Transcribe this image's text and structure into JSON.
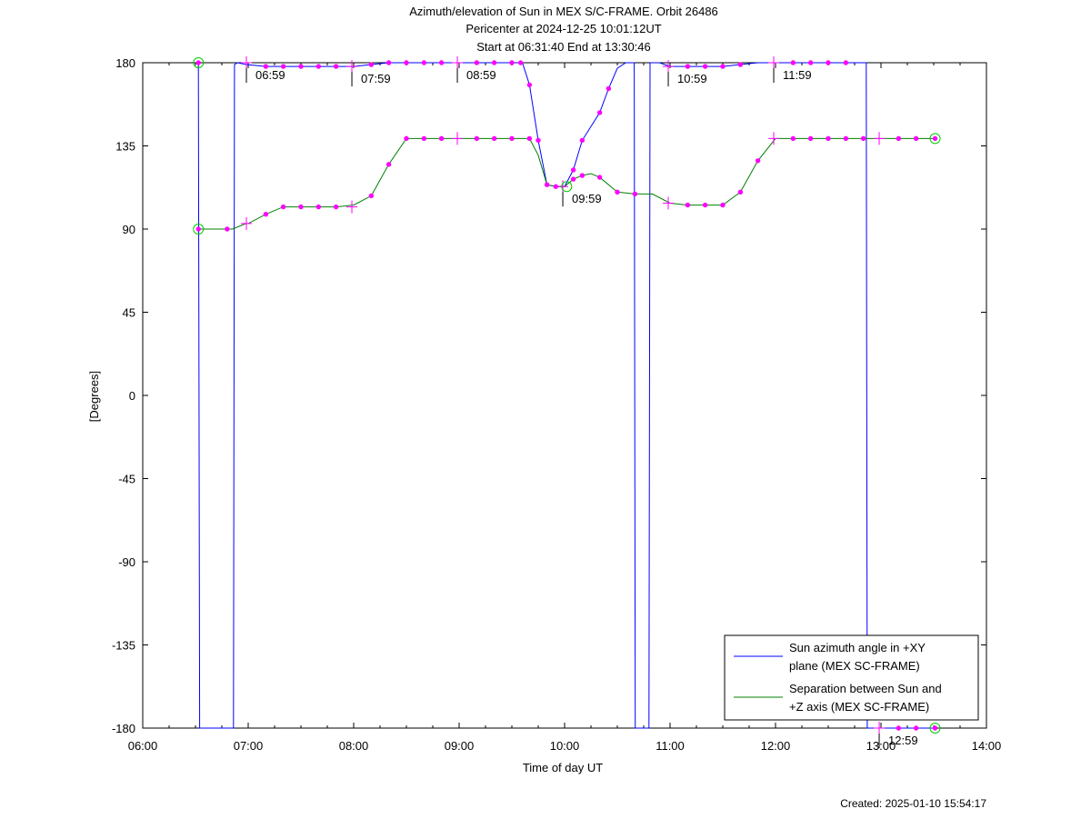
{
  "titles": {
    "line1": "Azimuth/elevation of Sun in MEX S/C-FRAME.  Orbit 26486",
    "line2": "Pericenter at 2024-12-25 10:01:12UT",
    "line3": "Start at 06:31:40 End at 13:30:46"
  },
  "created": "Created: 2025-01-10 15:54:17",
  "chart_data": {
    "type": "line",
    "xlabel": "Time of day UT",
    "ylabel": "[Degrees]",
    "xlim": [
      6.0,
      14.0
    ],
    "ylim": [
      -180,
      180
    ],
    "xticks": [
      {
        "v": 6,
        "label": "06:00"
      },
      {
        "v": 7,
        "label": "07:00"
      },
      {
        "v": 8,
        "label": "08:00"
      },
      {
        "v": 9,
        "label": "09:00"
      },
      {
        "v": 10,
        "label": "10:00"
      },
      {
        "v": 11,
        "label": "11:00"
      },
      {
        "v": 12,
        "label": "12:00"
      },
      {
        "v": 13,
        "label": "13:00"
      },
      {
        "v": 14,
        "label": "14:00"
      }
    ],
    "yticks": [
      180,
      135,
      90,
      45,
      0,
      -45,
      -90,
      -135,
      -180
    ],
    "legend_position": "bottom-right",
    "series": [
      {
        "name": "Sun azimuth angle in +XY plane (MEX SC-FRAME)",
        "legend_lines": [
          "Sun azimuth angle in +XY",
          "plane (MEX SC-FRAME)"
        ],
        "color": "#0000ff",
        "points": [
          [
            6.528,
            180
          ],
          [
            6.54,
            -180
          ],
          [
            6.86,
            -180
          ],
          [
            6.87,
            179
          ],
          [
            6.9,
            180
          ],
          [
            6.98,
            179
          ],
          [
            7.167,
            178
          ],
          [
            7.333,
            178
          ],
          [
            7.5,
            178
          ],
          [
            7.667,
            178
          ],
          [
            7.833,
            178
          ],
          [
            8.0,
            178
          ],
          [
            8.167,
            179
          ],
          [
            8.333,
            180
          ],
          [
            8.5,
            180
          ],
          [
            8.667,
            180
          ],
          [
            8.833,
            180
          ],
          [
            9.0,
            180
          ],
          [
            9.167,
            180
          ],
          [
            9.333,
            180
          ],
          [
            9.5,
            180
          ],
          [
            9.6,
            180
          ],
          [
            9.667,
            168
          ],
          [
            9.75,
            138
          ],
          [
            9.833,
            114
          ],
          [
            9.917,
            113
          ],
          [
            10.0,
            113
          ],
          [
            10.083,
            122
          ],
          [
            10.167,
            138
          ],
          [
            10.333,
            153
          ],
          [
            10.417,
            166
          ],
          [
            10.5,
            177
          ],
          [
            10.58,
            180
          ],
          [
            10.66,
            180
          ],
          [
            10.67,
            -180
          ],
          [
            10.8,
            -180
          ],
          [
            10.81,
            180
          ],
          [
            10.9,
            180
          ],
          [
            11.0,
            178
          ],
          [
            11.167,
            178
          ],
          [
            11.333,
            178
          ],
          [
            11.5,
            178
          ],
          [
            11.667,
            179
          ],
          [
            11.833,
            180
          ],
          [
            12.0,
            180
          ],
          [
            12.167,
            180
          ],
          [
            12.333,
            180
          ],
          [
            12.5,
            180
          ],
          [
            12.667,
            180
          ],
          [
            12.833,
            180
          ],
          [
            12.86,
            180
          ],
          [
            12.87,
            -180
          ],
          [
            13.0,
            -180
          ],
          [
            13.167,
            -180
          ],
          [
            13.333,
            -180
          ],
          [
            13.513,
            -180
          ]
        ],
        "markers": [
          [
            6.528,
            180
          ],
          [
            7.167,
            178
          ],
          [
            7.333,
            178
          ],
          [
            7.5,
            178
          ],
          [
            7.667,
            178
          ],
          [
            7.833,
            178
          ],
          [
            8.167,
            179
          ],
          [
            8.333,
            180
          ],
          [
            8.5,
            180
          ],
          [
            8.667,
            180
          ],
          [
            8.833,
            180
          ],
          [
            9.167,
            180
          ],
          [
            9.333,
            180
          ],
          [
            9.5,
            180
          ],
          [
            9.583,
            180
          ],
          [
            9.667,
            168
          ],
          [
            9.75,
            138
          ],
          [
            9.833,
            114
          ],
          [
            9.917,
            113
          ],
          [
            10.083,
            122
          ],
          [
            10.167,
            138
          ],
          [
            10.333,
            153
          ],
          [
            10.417,
            166
          ],
          [
            11.167,
            178
          ],
          [
            11.333,
            178
          ],
          [
            11.5,
            178
          ],
          [
            11.667,
            179
          ],
          [
            12.167,
            180
          ],
          [
            12.333,
            180
          ],
          [
            12.5,
            180
          ],
          [
            12.667,
            180
          ],
          [
            13.167,
            -180
          ],
          [
            13.333,
            -180
          ],
          [
            13.513,
            -180
          ]
        ]
      },
      {
        "name": "Separation between Sun and +Z axis (MEX SC-FRAME)",
        "legend_lines": [
          "Separation between Sun and",
          "+Z axis (MEX SC-FRAME)"
        ],
        "color": "#008000",
        "points": [
          [
            6.528,
            90
          ],
          [
            6.8,
            90
          ],
          [
            6.85,
            90
          ],
          [
            6.98,
            93
          ],
          [
            7.0,
            93
          ],
          [
            7.167,
            98
          ],
          [
            7.333,
            102
          ],
          [
            7.5,
            102
          ],
          [
            7.667,
            102
          ],
          [
            7.833,
            102
          ],
          [
            8.0,
            103
          ],
          [
            8.167,
            108
          ],
          [
            8.333,
            125
          ],
          [
            8.5,
            139
          ],
          [
            8.667,
            139
          ],
          [
            8.833,
            139
          ],
          [
            9.0,
            139
          ],
          [
            9.167,
            139
          ],
          [
            9.333,
            139
          ],
          [
            9.5,
            139
          ],
          [
            9.667,
            139
          ],
          [
            9.75,
            130
          ],
          [
            9.833,
            114
          ],
          [
            9.917,
            113
          ],
          [
            10.0,
            113
          ],
          [
            10.083,
            117
          ],
          [
            10.167,
            119
          ],
          [
            10.25,
            120
          ],
          [
            10.333,
            118
          ],
          [
            10.5,
            110
          ],
          [
            10.667,
            109
          ],
          [
            10.833,
            109
          ],
          [
            11.0,
            104
          ],
          [
            11.167,
            103
          ],
          [
            11.333,
            103
          ],
          [
            11.5,
            103
          ],
          [
            11.667,
            110
          ],
          [
            11.833,
            127
          ],
          [
            12.0,
            139
          ],
          [
            12.167,
            139
          ],
          [
            12.333,
            139
          ],
          [
            12.5,
            139
          ],
          [
            12.667,
            139
          ],
          [
            12.833,
            139
          ],
          [
            13.0,
            139
          ],
          [
            13.167,
            139
          ],
          [
            13.333,
            139
          ],
          [
            13.513,
            139
          ]
        ],
        "markers": [
          [
            6.528,
            90
          ],
          [
            6.8,
            90
          ],
          [
            7.167,
            98
          ],
          [
            7.333,
            102
          ],
          [
            7.5,
            102
          ],
          [
            7.667,
            102
          ],
          [
            7.833,
            102
          ],
          [
            8.167,
            108
          ],
          [
            8.333,
            125
          ],
          [
            8.5,
            139
          ],
          [
            8.667,
            139
          ],
          [
            8.833,
            139
          ],
          [
            9.167,
            139
          ],
          [
            9.333,
            139
          ],
          [
            9.5,
            139
          ],
          [
            9.667,
            139
          ],
          [
            10.083,
            117
          ],
          [
            10.167,
            119
          ],
          [
            10.333,
            118
          ],
          [
            10.5,
            110
          ],
          [
            10.667,
            109
          ],
          [
            11.167,
            103
          ],
          [
            11.333,
            103
          ],
          [
            11.5,
            103
          ],
          [
            11.667,
            110
          ],
          [
            11.833,
            127
          ],
          [
            12.167,
            139
          ],
          [
            12.333,
            139
          ],
          [
            12.5,
            139
          ],
          [
            12.667,
            139
          ],
          [
            12.833,
            139
          ],
          [
            13.167,
            139
          ],
          [
            13.333,
            139
          ],
          [
            13.513,
            139
          ]
        ]
      }
    ],
    "hour_annotations": [
      {
        "x": 6.983,
        "y": 180,
        "label": "06:59"
      },
      {
        "x": 7.983,
        "y": 178,
        "label": "07:59"
      },
      {
        "x": 8.983,
        "y": 180,
        "label": "08:59"
      },
      {
        "x": 9.983,
        "y": 113,
        "label": "09:59"
      },
      {
        "x": 10.983,
        "y": 178,
        "label": "10:59"
      },
      {
        "x": 11.983,
        "y": 180,
        "label": "11:59"
      },
      {
        "x": 12.983,
        "y": -180,
        "label": "12:59"
      }
    ],
    "cross_markers": [
      [
        6.983,
        180
      ],
      [
        6.983,
        93
      ],
      [
        7.983,
        178
      ],
      [
        7.983,
        102
      ],
      [
        8.983,
        180
      ],
      [
        8.983,
        139
      ],
      [
        9.983,
        113
      ],
      [
        10.983,
        178
      ],
      [
        10.983,
        104
      ],
      [
        11.983,
        180
      ],
      [
        11.983,
        139
      ],
      [
        12.983,
        -180
      ],
      [
        12.983,
        139
      ]
    ],
    "circle_markers": [
      [
        6.528,
        180
      ],
      [
        6.528,
        90
      ],
      [
        10.02,
        113
      ],
      [
        13.513,
        -180
      ],
      [
        13.513,
        139
      ]
    ]
  }
}
